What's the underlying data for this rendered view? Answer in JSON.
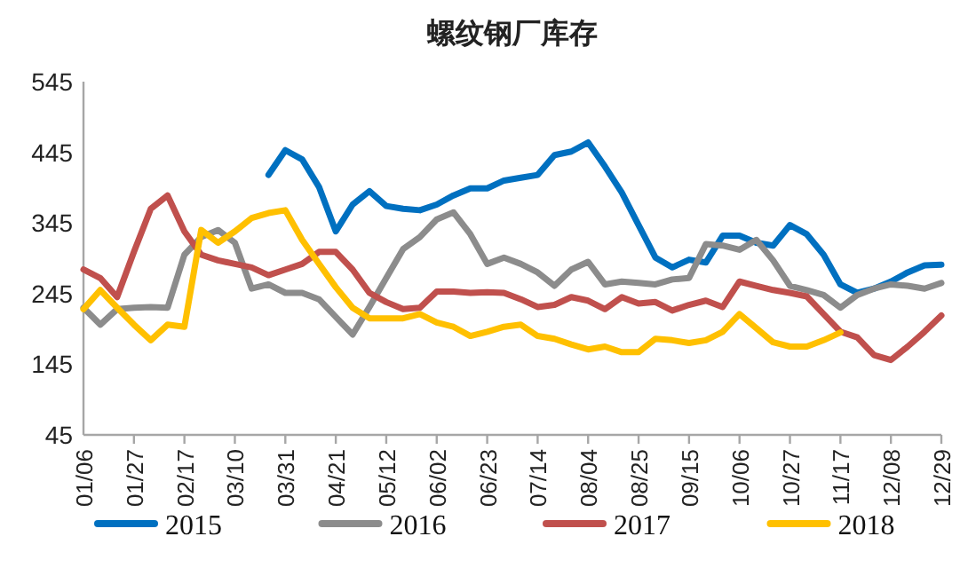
{
  "chart_data": {
    "type": "line",
    "title": "螺纹钢厂库存",
    "categories": [
      "01/06",
      null,
      null,
      "01/27",
      null,
      null,
      "02/17",
      null,
      null,
      "03/10",
      null,
      null,
      "03/31",
      null,
      null,
      "04/21",
      null,
      null,
      "05/12",
      null,
      null,
      "06/02",
      null,
      null,
      "06/23",
      null,
      null,
      "07/14",
      null,
      null,
      "08/04",
      null,
      null,
      "08/25",
      null,
      null,
      "09/15",
      null,
      null,
      "10/06",
      null,
      null,
      "10/27",
      null,
      null,
      "11/17",
      null,
      null,
      "12/08",
      null,
      null,
      "12/29"
    ],
    "ylim": [
      45,
      545
    ],
    "yticks": [
      45,
      145,
      245,
      345,
      445,
      545
    ],
    "legend": "bottom",
    "series": [
      {
        "name": "2015",
        "color": "#0070c0",
        "values": [
          null,
          null,
          null,
          null,
          null,
          null,
          null,
          null,
          null,
          null,
          null,
          413,
          448,
          435,
          396,
          333,
          371,
          390,
          369,
          365,
          363,
          371,
          384,
          394,
          394,
          405,
          409,
          413,
          441,
          446,
          459,
          425,
          388,
          342,
          296,
          282,
          293,
          289,
          327,
          327,
          317,
          313,
          342,
          329,
          300,
          258,
          246,
          252,
          262,
          275,
          285,
          286
        ]
      },
      {
        "name": "2016",
        "color": "#8c8c8c",
        "values": [
          225,
          201,
          223,
          225,
          226,
          225,
          300,
          325,
          335,
          317,
          252,
          258,
          246,
          246,
          237,
          212,
          187,
          226,
          267,
          308,
          325,
          350,
          360,
          329,
          287,
          296,
          287,
          275,
          256,
          279,
          290,
          258,
          262,
          260,
          258,
          265,
          267,
          315,
          313,
          307,
          321,
          292,
          256,
          250,
          243,
          225,
          243,
          252,
          258,
          256,
          252,
          260
        ]
      },
      {
        "name": "2017",
        "color": "#c0504d",
        "values": [
          279,
          267,
          240,
          304,
          365,
          384,
          333,
          300,
          292,
          287,
          282,
          271,
          279,
          287,
          304,
          304,
          279,
          246,
          233,
          223,
          225,
          248,
          248,
          246,
          247,
          246,
          237,
          226,
          229,
          240,
          235,
          223,
          240,
          231,
          233,
          221,
          229,
          235,
          226,
          262,
          256,
          250,
          246,
          241,
          216,
          191,
          183,
          158,
          151,
          170,
          191,
          214
        ]
      },
      {
        "name": "2018",
        "color": "#ffc000",
        "values": [
          223,
          250,
          225,
          201,
          179,
          201,
          198,
          335,
          317,
          333,
          352,
          359,
          363,
          321,
          287,
          254,
          225,
          210,
          210,
          210,
          216,
          204,
          198,
          185,
          191,
          198,
          201,
          185,
          181,
          173,
          166,
          170,
          162,
          162,
          181,
          179,
          175,
          179,
          191,
          216,
          196,
          176,
          170,
          170,
          179,
          190,
          null,
          null,
          null,
          null,
          null,
          null
        ]
      }
    ]
  }
}
